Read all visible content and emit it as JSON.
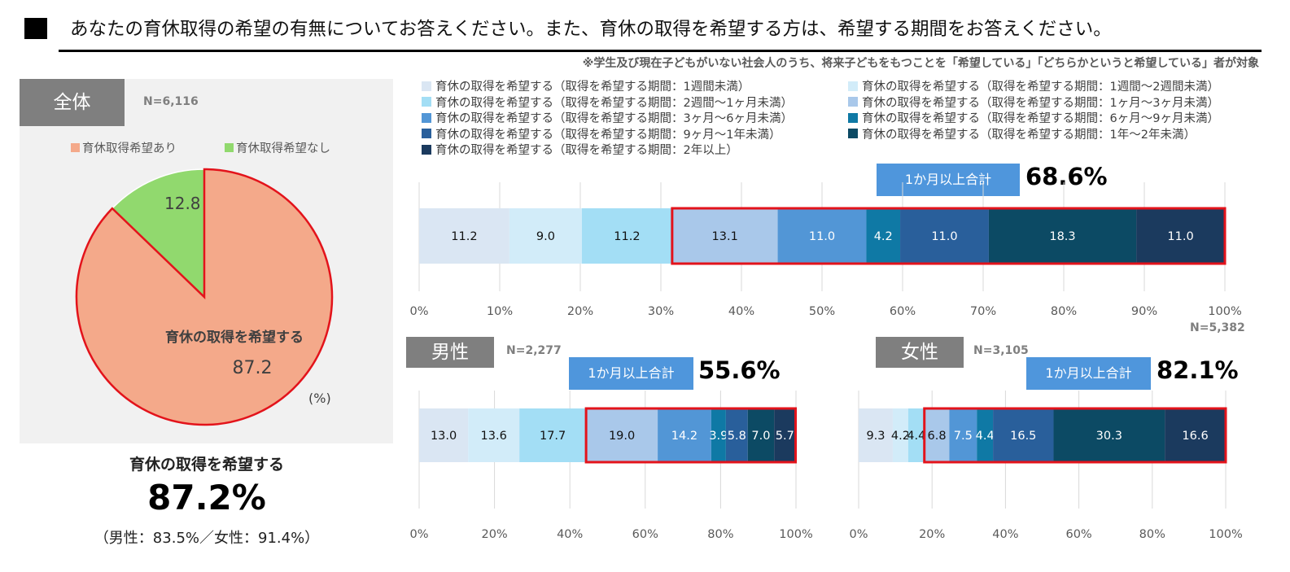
{
  "header": {
    "title": "あなたの育休取得の希望の有無についてお答えください。また、育休の取得を希望する方は、希望する期間をお答えください。",
    "note": "※学生及び現在子どもがいない社会人のうち、将来子どもをもつことを「希望している」「どちらかというと希望している」者が対象"
  },
  "colors": {
    "seg": [
      "#dae6f3",
      "#d2ecf9",
      "#a3def5",
      "#a9c8ea",
      "#5296d6",
      "#0f79a5",
      "#295f9b",
      "#0c4a64",
      "#1b3a5e"
    ],
    "pie_yes": "#f4a98a",
    "pie_no": "#91d96e",
    "highlight": "#e3131b",
    "tag": "#7f7f7f",
    "callout": "#4f96dc"
  },
  "overall_panel": {
    "tag": "全体",
    "n": "N=6,116",
    "legend_yes": "育休取得希望あり",
    "legend_no": "育休取得希望なし",
    "slice_label": "育休の取得を希望する",
    "unit": "(%)",
    "summary_label": "育休の取得を希望する",
    "summary_value": "87.2%",
    "summary_note": "（男性：83.5%／女性：91.4%）"
  },
  "legend": [
    "育休の取得を希望する（取得を希望する期間：1週間未満）",
    "育休の取得を希望する（取得を希望する期間：1週間～2週間未満）",
    "育休の取得を希望する（取得を希望する期間：2週間～1ヶ月未満）",
    "育休の取得を希望する（取得を希望する期間：1ヶ月～3ヶ月未満）",
    "育休の取得を希望する（取得を希望する期間：3ヶ月～6ヶ月未満）",
    "育休の取得を希望する（取得を希望する期間：6ヶ月～9ヶ月未満）",
    "育休の取得を希望する（取得を希望する期間：9ヶ月～1年未満）",
    "育休の取得を希望する（取得を希望する期間：1年～2年未満）",
    "育休の取得を希望する（取得を希望する期間：2年以上）"
  ],
  "bars": {
    "overall": {
      "n": "N=5,382",
      "callout_label": "1か月以上合計",
      "callout_value": "68.6%"
    },
    "male": {
      "tag": "男性",
      "n": "N=2,277",
      "callout_label": "1か月以上合計",
      "callout_value": "55.6%"
    },
    "female": {
      "tag": "女性",
      "n": "N=3,105",
      "callout_label": "1か月以上合計",
      "callout_value": "82.1%"
    }
  },
  "chart_data": [
    {
      "type": "pie",
      "categories": [
        "育休取得希望あり",
        "育休取得希望なし"
      ],
      "values": [
        87.2,
        12.8
      ],
      "unit": "(%)"
    },
    {
      "type": "bar",
      "stacked": true,
      "orientation": "horizontal",
      "categories": [
        "1週間未満",
        "1週間～2週間未満",
        "2週間～1ヶ月未満",
        "1ヶ月～3ヶ月未満",
        "3ヶ月～6ヶ月未満",
        "6ヶ月～9ヶ月未満",
        "9ヶ月～1年未満",
        "1年～2年未満",
        "2年以上"
      ],
      "values": [
        11.2,
        9.0,
        11.2,
        13.1,
        11.0,
        4.2,
        11.0,
        18.3,
        11.0
      ],
      "xlim": [
        0,
        100
      ],
      "ticks": [
        "0%",
        "10%",
        "20%",
        "30%",
        "40%",
        "50%",
        "60%",
        "70%",
        "80%",
        "90%",
        "100%"
      ]
    },
    {
      "type": "bar",
      "stacked": true,
      "orientation": "horizontal",
      "categories": [
        "1週間未満",
        "1週間～2週間未満",
        "2週間～1ヶ月未満",
        "1ヶ月～3ヶ月未満",
        "3ヶ月～6ヶ月未満",
        "6ヶ月～9ヶ月未満",
        "9ヶ月～1年未満",
        "1年～2年未満",
        "2年以上"
      ],
      "values": [
        13.0,
        13.6,
        17.7,
        19.0,
        14.2,
        3.9,
        5.8,
        7.0,
        5.7
      ],
      "xlim": [
        0,
        100
      ],
      "ticks": [
        "0%",
        "20%",
        "40%",
        "60%",
        "80%",
        "100%"
      ]
    },
    {
      "type": "bar",
      "stacked": true,
      "orientation": "horizontal",
      "categories": [
        "1週間未満",
        "1週間～2週間未満",
        "2週間～1ヶ月未満",
        "1ヶ月～3ヶ月未満",
        "3ヶ月～6ヶ月未満",
        "6ヶ月～9ヶ月未満",
        "9ヶ月～1年未満",
        "1年～2年未満",
        "2年以上"
      ],
      "values": [
        9.3,
        4.2,
        4.4,
        6.8,
        7.5,
        4.4,
        16.5,
        30.3,
        16.6
      ],
      "xlim": [
        0,
        100
      ],
      "ticks": [
        "0%",
        "20%",
        "40%",
        "60%",
        "80%",
        "100%"
      ]
    }
  ]
}
